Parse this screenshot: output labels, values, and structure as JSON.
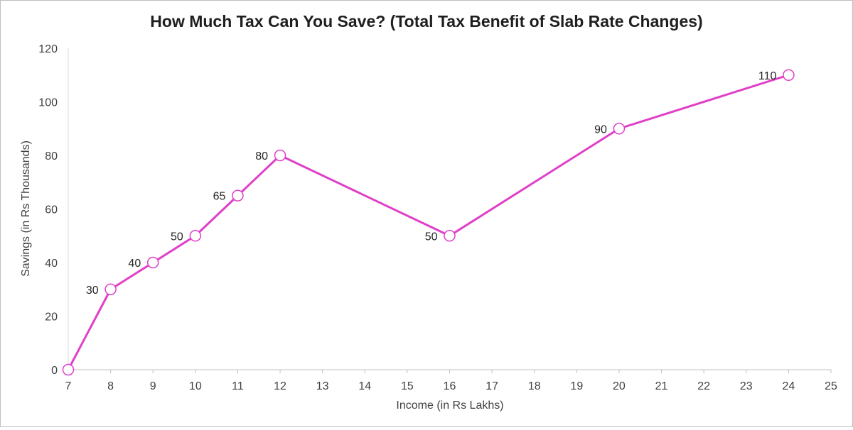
{
  "chart_data": {
    "type": "line",
    "title": "How Much Tax Can You Save? (Total Tax Benefit of Slab Rate Changes)",
    "xlabel": "Income (in Rs Lakhs)",
    "ylabel": "Savings (in Rs Thousands)",
    "xlim": [
      7,
      25
    ],
    "ylim": [
      0,
      120
    ],
    "xticks": [
      7,
      8,
      9,
      10,
      11,
      12,
      13,
      14,
      15,
      16,
      17,
      18,
      19,
      20,
      21,
      22,
      23,
      24,
      25
    ],
    "yticks": [
      0,
      20,
      40,
      60,
      80,
      100,
      120
    ],
    "grid": false,
    "legend": "none",
    "series": [
      {
        "x": [
          7,
          8,
          9,
          10,
          11,
          12,
          16,
          20,
          24
        ],
        "y": [
          0,
          30,
          40,
          50,
          65,
          80,
          50,
          90,
          110
        ],
        "labels": [
          "",
          "30",
          "40",
          "50",
          "65",
          "80",
          "50",
          "90",
          "110"
        ],
        "color": "#e040c8"
      }
    ]
  }
}
